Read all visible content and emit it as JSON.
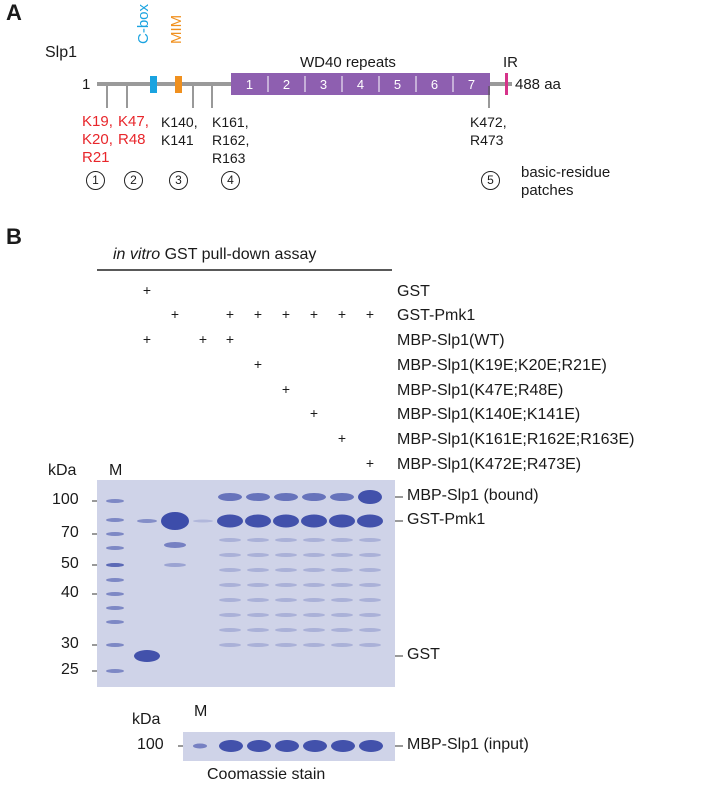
{
  "panelA": {
    "label": "A",
    "protein": "Slp1",
    "start": "1",
    "end": "488 aa",
    "cbox": "C-box",
    "mim": "MIM",
    "wd40": "WD40 repeats",
    "ir": "IR",
    "repeats": [
      "1",
      "2",
      "3",
      "4",
      "5",
      "6",
      "7"
    ],
    "sites": [
      {
        "lines": [
          "K19,",
          "K20,",
          "R21"
        ],
        "red": true
      },
      {
        "lines": [
          "K47,",
          "R48"
        ],
        "red": true
      },
      {
        "lines": [
          "K140,",
          "K141"
        ],
        "red": false
      },
      {
        "lines": [
          "K161,",
          "R162,",
          "R163"
        ],
        "red": false
      },
      {
        "lines": [
          "K472,",
          "R473"
        ],
        "red": false
      }
    ],
    "patch_numbers": [
      "1",
      "2",
      "3",
      "4",
      "5"
    ],
    "patch_label_1": "basic-residue",
    "patch_label_2": "patches",
    "colors": {
      "cbox": "#1aa3e0",
      "mim": "#f0901e",
      "wd40": "#8e5fb0",
      "ir": "#d6338a",
      "red": "#e8262b"
    }
  },
  "panelB": {
    "label": "B",
    "assay_italic": "in vitro",
    "assay_rest": " GST pull-down assay",
    "rows": [
      {
        "label": "GST",
        "lanes": [
          2
        ]
      },
      {
        "label": "GST-Pmk1",
        "lanes": [
          3,
          5,
          6,
          7,
          8,
          9,
          10
        ]
      },
      {
        "label": "MBP-Slp1(WT)",
        "lanes": [
          2,
          4,
          5
        ]
      },
      {
        "label": "MBP-Slp1(K19E;K20E;R21E)",
        "lanes": [
          6
        ]
      },
      {
        "label": "MBP-Slp1(K47E;R48E)",
        "lanes": [
          7
        ]
      },
      {
        "label": "MBP-Slp1(K140E;K141E)",
        "lanes": [
          8
        ]
      },
      {
        "label": "MBP-Slp1(K161E;R162E;R163E)",
        "lanes": [
          9
        ]
      },
      {
        "label": "MBP-Slp1(K472E;R473E)",
        "lanes": [
          10
        ]
      }
    ],
    "plus": "+",
    "kda": "kDa",
    "marker": "M",
    "mw_ticks": [
      "100",
      "70",
      "50",
      "40",
      "30",
      "25"
    ],
    "band_labels": [
      "MBP-Slp1 (bound)",
      "GST-Pmk1",
      "GST"
    ],
    "input_kda": "kDa",
    "input_marker": "M",
    "input_tick": "100",
    "input_label": "MBP-Slp1 (input)",
    "stain": "Coomassie stain",
    "gel_color": "#cfd3e8",
    "band_color": "#3a4aa8"
  }
}
